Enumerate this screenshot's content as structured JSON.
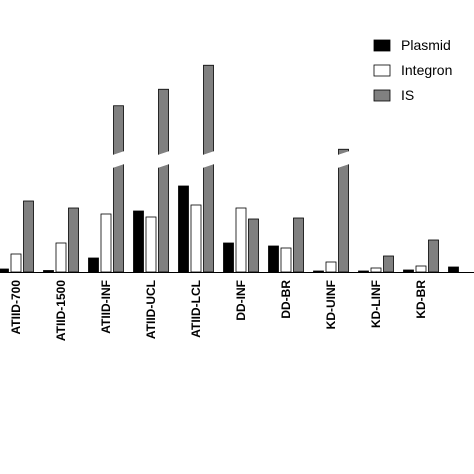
{
  "chart_data": {
    "type": "bar",
    "categories": [
      "ATIID-700",
      "ATIID-1500",
      "ATIID-INF",
      "ATIID-UCL",
      "ATIID-LCL",
      "DD-INF",
      "DD-BR",
      "KD-UINF",
      "KD-LINF",
      "KD-BR",
      ""
    ],
    "series": [
      {
        "name": "Plasmid",
        "color": "#000000",
        "values": [
          3,
          1.5,
          14,
          61,
          86,
          29,
          26,
          1,
          1,
          2,
          5
        ]
      },
      {
        "name": "Integron",
        "color": "#ffffff",
        "values": [
          18,
          29,
          58,
          55,
          67,
          64,
          24,
          10,
          4,
          6,
          null
        ]
      },
      {
        "name": "IS",
        "color": "#808080",
        "values": [
          71,
          64,
          168,
          190,
          222,
          53,
          54,
          110,
          16,
          32,
          null
        ]
      }
    ],
    "broken_axis": true,
    "legend_position": "top-right",
    "grid": false
  }
}
